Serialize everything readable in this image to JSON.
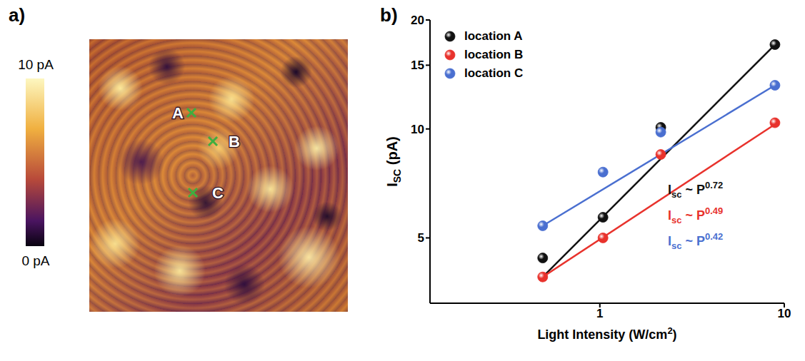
{
  "chart_data": [
    {
      "type": "image",
      "title": "a)",
      "colorbar": {
        "range": [
          0,
          10
        ],
        "ticks": [
          {
            "value": 10,
            "label": "10 pA"
          },
          {
            "value": 0,
            "label": "0 pA"
          }
        ]
      },
      "locations": [
        "A",
        "B",
        "C"
      ],
      "marker": "x",
      "color": "#3fae3f"
    },
    {
      "type": "scatter",
      "title": "b)",
      "log": true,
      "xlabel": {
        "text": "Light Intensity (W/cm",
        "sup": "2",
        "rest": ")"
      },
      "ylabel": {
        "text": "I",
        "sub": "SC",
        "rest": " (pA)"
      },
      "xlim": [
        0.12,
        10
      ],
      "xticks": [
        1,
        10
      ],
      "ylim": [
        3.3,
        20
      ],
      "yticks": [
        5,
        10,
        15,
        20
      ],
      "legend": "upper left",
      "marker": "o",
      "series": [
        {
          "name": "location A",
          "color": "#111111",
          "x": [
            0.49,
            1.04,
            2.14,
            8.9
          ],
          "values": [
            4.4,
            5.7,
            10.1,
            17.1
          ],
          "fit": {
            "x": [
              0.49,
              8.9
            ],
            "values": [
              3.9,
              17.1
            ]
          },
          "fit_label": {
            "text": "I",
            "sub": "sc",
            "mid": " ~ P",
            "sup": "0.72"
          }
        },
        {
          "name": "location B",
          "color": "#e8322c",
          "x": [
            0.49,
            1.04,
            2.14,
            8.9
          ],
          "values": [
            3.9,
            5.0,
            8.5,
            10.4
          ],
          "fit": {
            "x": [
              0.49,
              8.9
            ],
            "values": [
              3.9,
              10.3
            ]
          },
          "fit_label": {
            "text": "I",
            "sub": "sc",
            "mid": " ~ P",
            "sup": "0.49"
          }
        },
        {
          "name": "location C",
          "color": "#4a6fd0",
          "x": [
            0.49,
            1.04,
            2.14,
            8.9
          ],
          "values": [
            5.4,
            7.6,
            9.8,
            13.2
          ],
          "fit": {
            "x": [
              0.49,
              8.9
            ],
            "values": [
              5.4,
              13.2
            ]
          },
          "fit_label": {
            "text": "I",
            "sub": "sc",
            "mid": " ~ P",
            "sup": "0.42"
          }
        }
      ]
    }
  ]
}
